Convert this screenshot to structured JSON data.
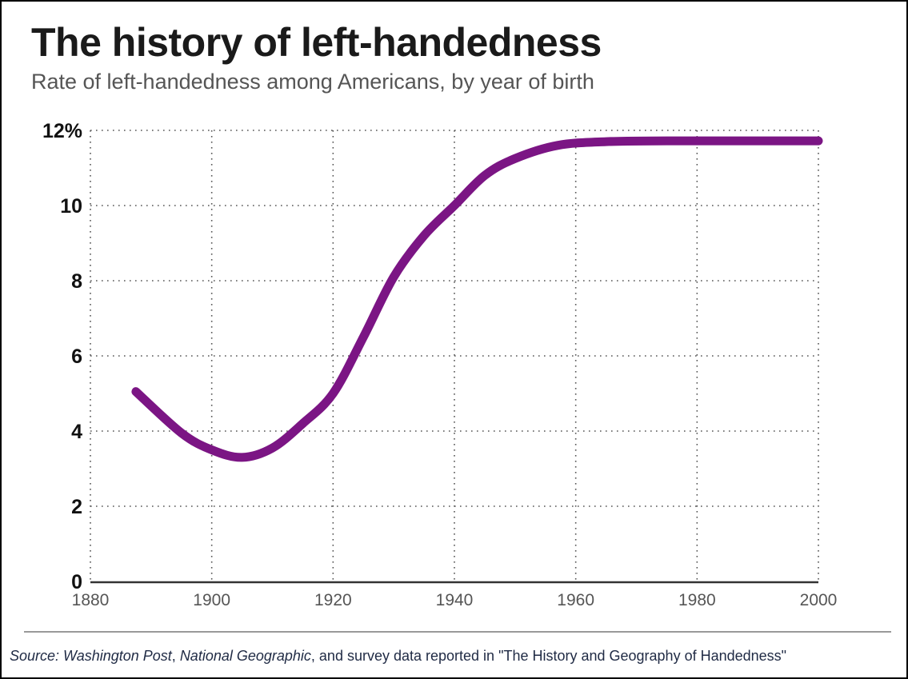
{
  "chart_data": {
    "type": "line",
    "title": "The history of left-handedness",
    "subtitle": "Rate of left-handedness among Americans, by year of birth",
    "xlabel": "",
    "ylabel": "",
    "xlim": [
      1880,
      2000
    ],
    "ylim": [
      0,
      12
    ],
    "x_ticks": [
      "1880",
      "1900",
      "1920",
      "1940",
      "1960",
      "1980",
      "2000"
    ],
    "y_ticks": [
      "0",
      "2",
      "4",
      "6",
      "8",
      "10",
      "12%"
    ],
    "grid": true,
    "series": [
      {
        "color": "#7b1584",
        "x": [
          1887.5,
          1895,
          1900,
          1905,
          1910,
          1915,
          1920,
          1925,
          1930,
          1935,
          1940,
          1945,
          1950,
          1957,
          1965,
          1975,
          1990,
          2000
        ],
        "y": [
          5.05,
          3.95,
          3.5,
          3.3,
          3.55,
          4.2,
          5.0,
          6.5,
          8.1,
          9.2,
          10.0,
          10.8,
          11.25,
          11.6,
          11.7,
          11.72,
          11.72,
          11.72
        ]
      }
    ]
  },
  "source": {
    "prefix": "Source: ",
    "italic1": "Washington Post",
    "sep": ", ",
    "italic2": "National Geographic",
    "rest": ", and survey data reported in \"The History and Geography of Handedness\""
  }
}
